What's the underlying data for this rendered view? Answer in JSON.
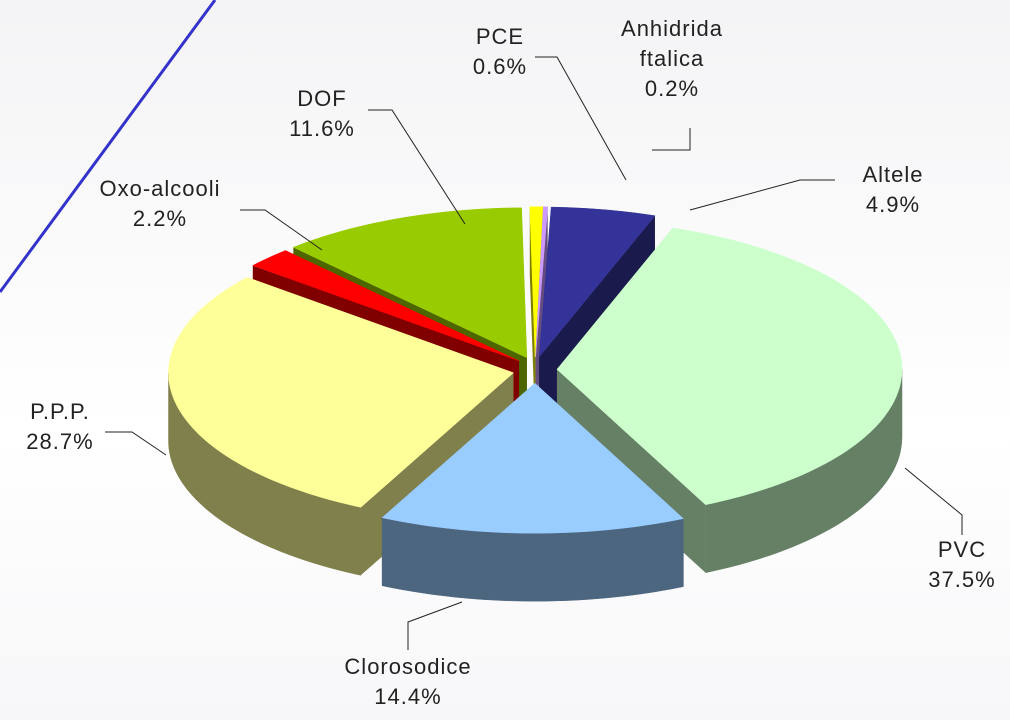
{
  "chart_data": {
    "type": "pie3d",
    "categories": [
      "Altele",
      "PVC",
      "Clorosodice",
      "P.P.P.",
      "Oxo-alcooli",
      "DOF",
      "PCE",
      "Anhidrida ftalica"
    ],
    "values": [
      4.9,
      37.5,
      14.4,
      28.7,
      2.2,
      11.6,
      0.6,
      0.2
    ],
    "value_labels": [
      "4.9%",
      "37.5%",
      "14.4%",
      "28.7%",
      "2.2%",
      "11.6%",
      "0.6%",
      "0.2%"
    ],
    "colors": [
      "#333399",
      "#ccffcc",
      "#99ccff",
      "#ffff99",
      "#ff0000",
      "#99cc00",
      "#ffff00",
      "#cc99ff"
    ]
  }
}
